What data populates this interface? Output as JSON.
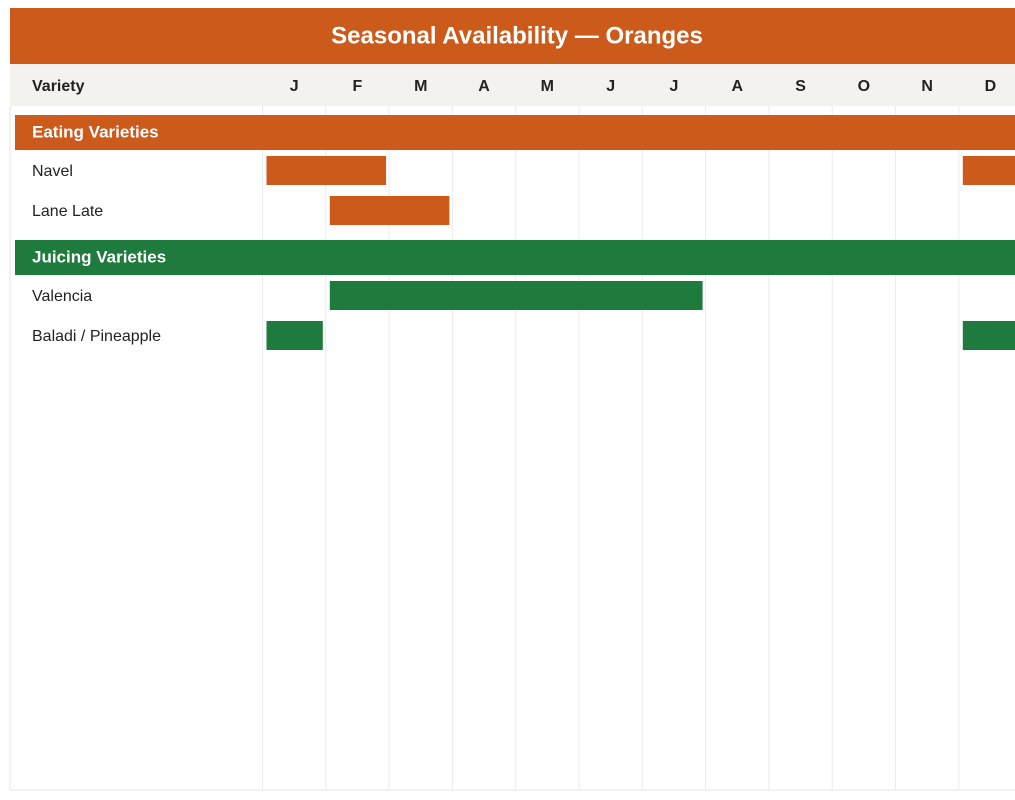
{
  "chart_data": {
    "type": "availability",
    "title": "Seasonal Availability — Oranges",
    "label_header": "Variety",
    "categories": [
      "J",
      "F",
      "M",
      "A",
      "M",
      "J",
      "J",
      "A",
      "S",
      "O",
      "N",
      "D"
    ],
    "groups": [
      {
        "name": "Eating Varieties",
        "color": "#cc5a1b",
        "series": [
          {
            "name": "Navel",
            "values": [
              1,
              1,
              0,
              0,
              0,
              0,
              0,
              0,
              0,
              0,
              0,
              1
            ]
          },
          {
            "name": "Lane Late",
            "values": [
              0,
              1,
              1,
              0,
              0,
              0,
              0,
              0,
              0,
              0,
              0,
              0
            ]
          }
        ]
      },
      {
        "name": "Juicing Varieties",
        "color": "#1f7a3e",
        "series": [
          {
            "name": "Valencia",
            "values": [
              0,
              1,
              1,
              1,
              1,
              1,
              1,
              0,
              0,
              0,
              0,
              0
            ]
          },
          {
            "name": "Baladi / Pineapple",
            "values": [
              1,
              0,
              0,
              0,
              0,
              0,
              0,
              0,
              0,
              0,
              0,
              1
            ]
          }
        ]
      }
    ]
  }
}
